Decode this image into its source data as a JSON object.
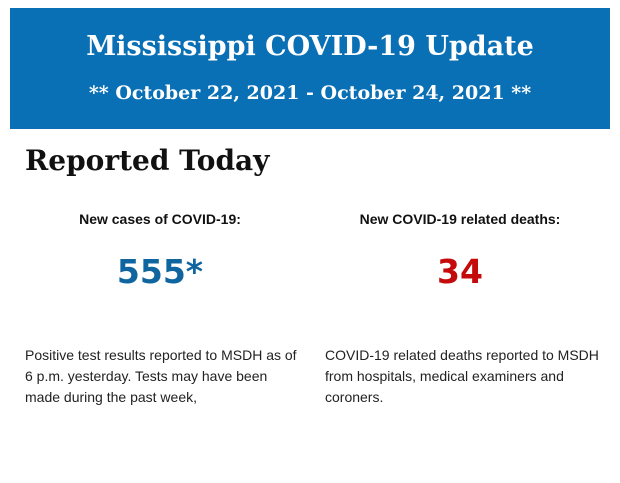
{
  "banner": {
    "title": "Mississippi COVID-19 Update",
    "dates": "** October 22, 2021 - October 24, 2021 **",
    "color": "#0a70b5"
  },
  "section": {
    "heading": "Reported Today"
  },
  "stats": {
    "cases": {
      "label": "New cases of COVID-19:",
      "value": "555*",
      "note": "Positive test results reported to MSDH as of 6 p.m. yesterday. Tests may have been made during the past week,",
      "color": "#0f65a0"
    },
    "deaths": {
      "label": "New COVID-19 related deaths:",
      "value": "34",
      "note": "COVID-19 related deaths reported to MSDH from hospitals, medical examiners and coroners.",
      "color": "#c40a0a"
    }
  }
}
